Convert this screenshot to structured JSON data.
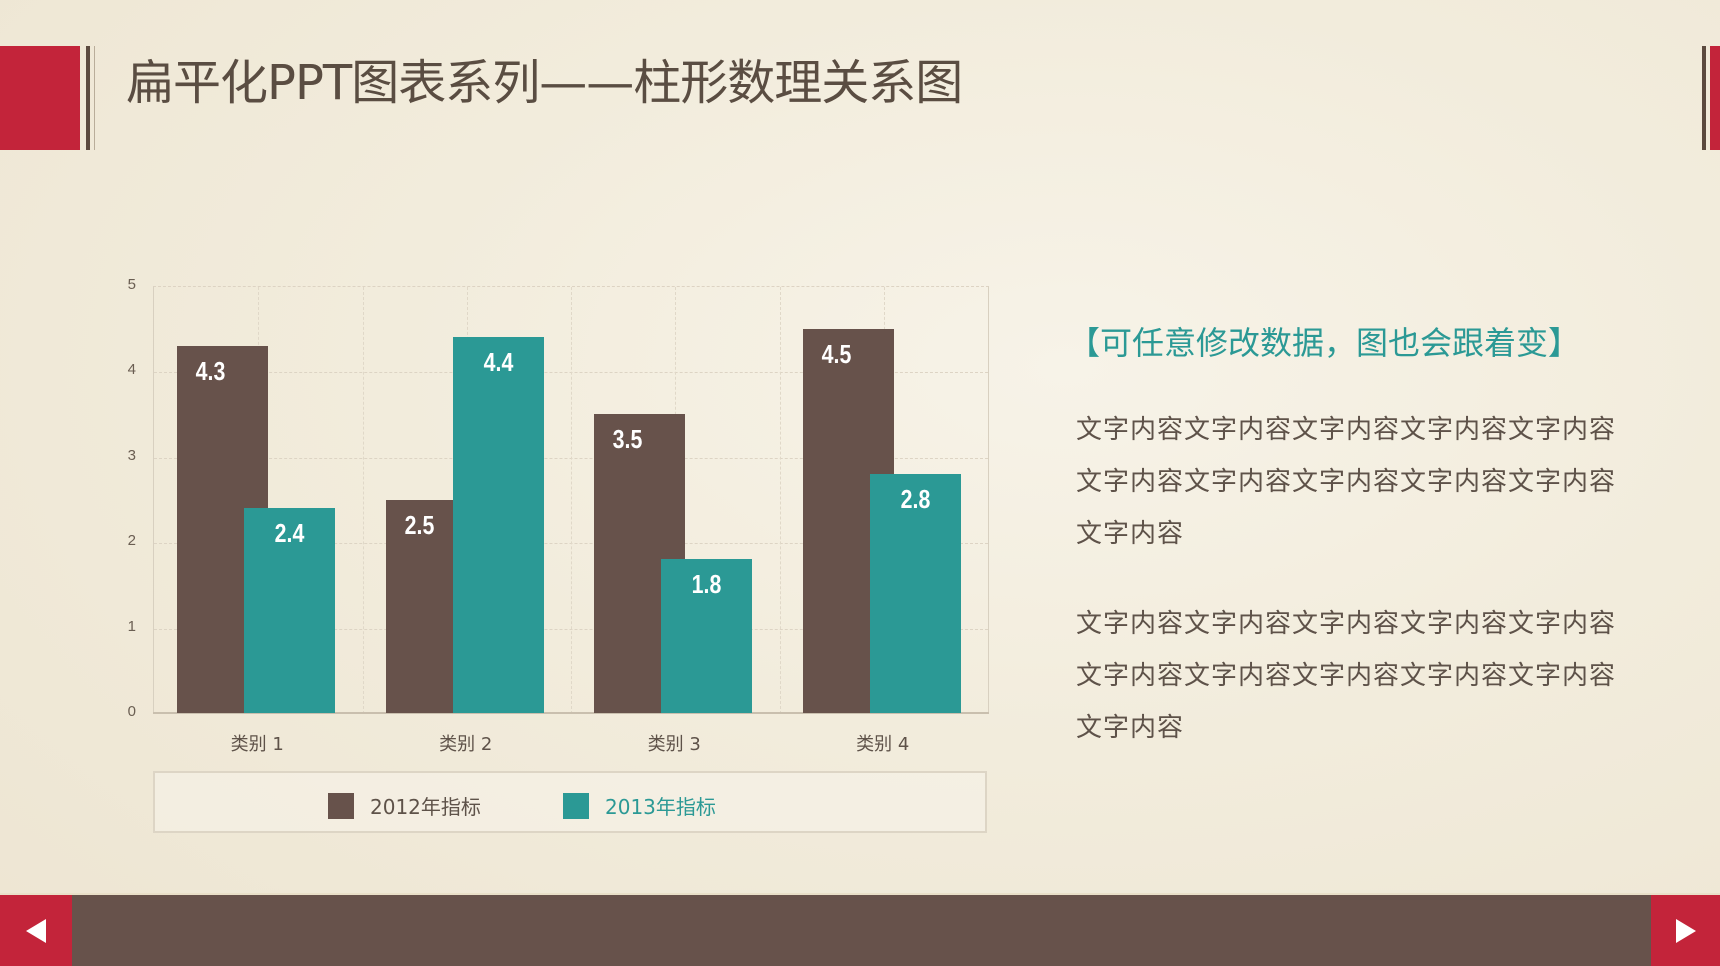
{
  "slide": {
    "title": "扁平化PPT图表系列——柱形数理关系图",
    "subtitle": "【可任意修改数据，图也会跟着变】",
    "paragraphs": [
      "文字内容文字内容文字内容文字内容文字内容文字内容文字内容文字内容文字内容文字内容文字内容",
      "文字内容文字内容文字内容文字内容文字内容文字内容文字内容文字内容文字内容文字内容文字内容"
    ]
  },
  "navigation": {
    "prev_icon": "triangle-left-icon",
    "next_icon": "triangle-right-icon"
  },
  "colors": {
    "accent_red": "#c3243a",
    "series_2012": "#67524b",
    "series_2013": "#2b9995",
    "title_text": "#5a4d42",
    "body_text": "#5e5249"
  },
  "chart_data": {
    "type": "bar",
    "title": "",
    "xlabel": "",
    "ylabel": "",
    "categories": [
      "类别 1",
      "类别 2",
      "类别 3",
      "类别 4"
    ],
    "series": [
      {
        "name": "2012年指标",
        "values": [
          4.3,
          2.5,
          3.5,
          4.5
        ],
        "labels": [
          "4.3",
          "2.5",
          "3.5",
          "4.5"
        ]
      },
      {
        "name": "2013年指标",
        "values": [
          2.4,
          4.4,
          1.8,
          2.8
        ],
        "labels": [
          "2.4",
          "4.4",
          "1.8",
          "2.8"
        ]
      }
    ],
    "ylim": [
      0,
      5
    ],
    "yticks": [
      "0",
      "1",
      "2",
      "3",
      "4",
      "5"
    ],
    "grid": true,
    "legend_position": "bottom",
    "data_labels": true
  }
}
